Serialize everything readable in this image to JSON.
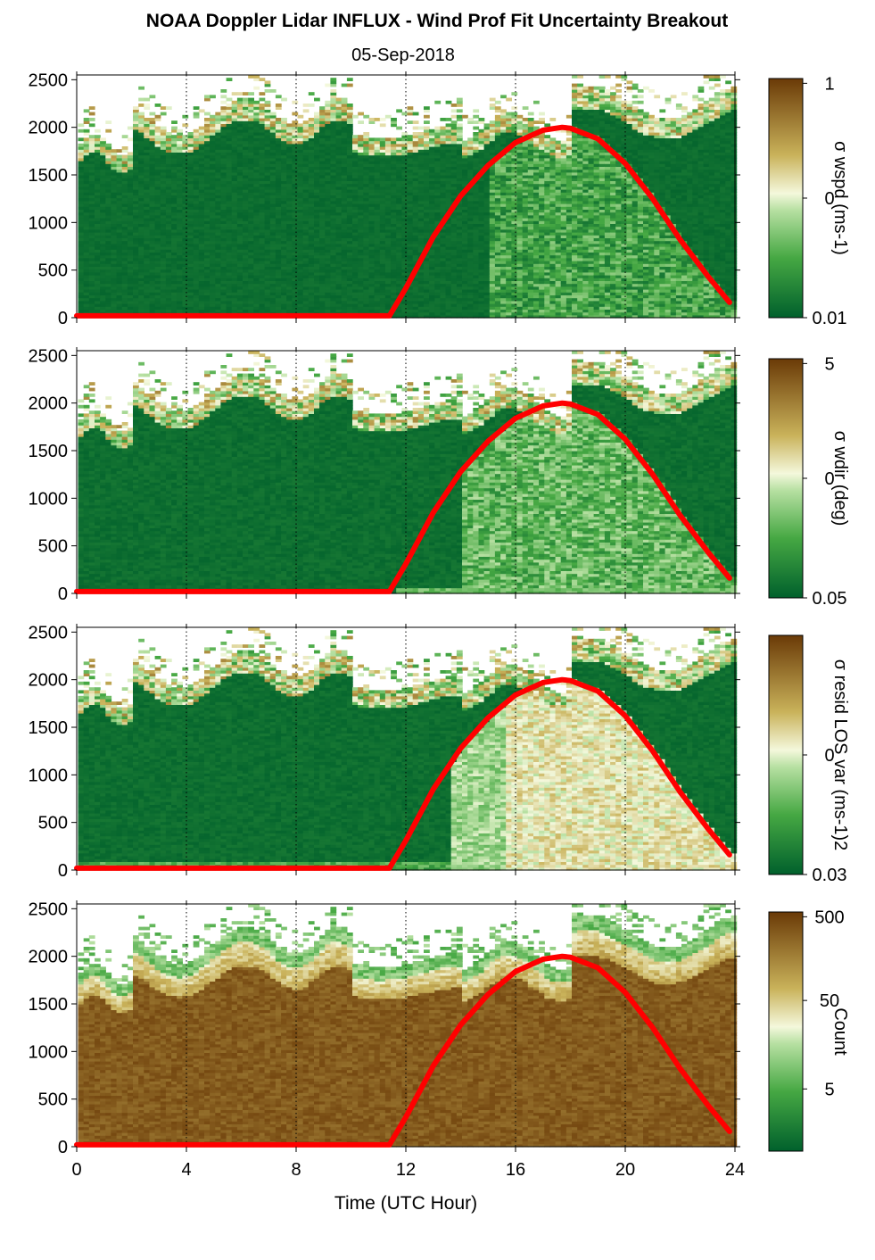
{
  "title": "NOAA Doppler Lidar INFLUX - Wind Prof Fit Uncertainty Breakout",
  "subtitle": "05-Sep-2018",
  "colors": {
    "dark_green": "#00662f",
    "mid_green": "#4fb74a",
    "pale": "#eef7dc",
    "tan": "#c9b25a",
    "dark_brown": "#6a3a07",
    "curve": "#ff0000"
  },
  "chart_data": [
    {
      "type": "heatmap",
      "panel": "wspd",
      "xlabel": "",
      "ylabel": "",
      "xlim": [
        0,
        24
      ],
      "ylim": [
        0,
        2550
      ],
      "x_ticks": [
        "0",
        "4",
        "8",
        "12",
        "16",
        "20",
        "24"
      ],
      "y_ticks": [
        "0",
        "500",
        "1000",
        "1500",
        "2000",
        "2500"
      ],
      "colorbar": {
        "label": "σ wspd (ms-1)",
        "ticks": [
          "1",
          "0",
          "0.01"
        ],
        "scale": "log"
      },
      "curve": {
        "x": [
          11.4,
          12,
          13,
          14,
          15,
          16,
          17,
          17.7,
          18,
          19,
          20,
          21,
          22,
          23,
          23.8
        ],
        "y": [
          20,
          310,
          850,
          1280,
          1600,
          1840,
          1970,
          2000,
          1990,
          1880,
          1620,
          1250,
          820,
          440,
          160
        ]
      }
    },
    {
      "type": "heatmap",
      "panel": "wdir",
      "xlabel": "",
      "ylabel": "",
      "xlim": [
        0,
        24
      ],
      "ylim": [
        0,
        2550
      ],
      "x_ticks": [
        "0",
        "4",
        "8",
        "12",
        "16",
        "20",
        "24"
      ],
      "y_ticks": [
        "0",
        "500",
        "1000",
        "1500",
        "2000",
        "2500"
      ],
      "colorbar": {
        "label": "σ wdir (deg)",
        "ticks": [
          "5",
          "0",
          "0.05"
        ],
        "scale": "log"
      },
      "curve": {
        "x": [
          11.4,
          12,
          13,
          14,
          15,
          16,
          17,
          17.7,
          18,
          19,
          20,
          21,
          22,
          23,
          23.8
        ],
        "y": [
          20,
          310,
          850,
          1280,
          1600,
          1840,
          1970,
          2000,
          1990,
          1880,
          1620,
          1250,
          820,
          440,
          160
        ]
      }
    },
    {
      "type": "heatmap",
      "panel": "resid",
      "xlabel": "",
      "ylabel": "",
      "xlim": [
        0,
        24
      ],
      "ylim": [
        0,
        2550
      ],
      "x_ticks": [
        "0",
        "4",
        "8",
        "12",
        "16",
        "20",
        "24"
      ],
      "y_ticks": [
        "0",
        "500",
        "1000",
        "1500",
        "2000",
        "2500"
      ],
      "colorbar": {
        "label": "σ resid LOS var (ms-1)2",
        "ticks": [
          "0",
          "0.03"
        ],
        "scale": "log"
      },
      "curve": {
        "x": [
          11.4,
          12,
          13,
          14,
          15,
          16,
          17,
          17.7,
          18,
          19,
          20,
          21,
          22,
          23,
          23.8
        ],
        "y": [
          20,
          310,
          850,
          1280,
          1600,
          1840,
          1970,
          2000,
          1990,
          1880,
          1620,
          1250,
          820,
          440,
          160
        ]
      }
    },
    {
      "type": "heatmap",
      "panel": "count",
      "xlabel": "Time (UTC Hour)",
      "ylabel": "",
      "xlim": [
        0,
        24
      ],
      "ylim": [
        0,
        2550
      ],
      "x_ticks": [
        "0",
        "4",
        "8",
        "12",
        "16",
        "20",
        "24"
      ],
      "y_ticks": [
        "0",
        "500",
        "1000",
        "1500",
        "2000",
        "2500"
      ],
      "colorbar": {
        "label": "Count",
        "ticks": [
          "500",
          "50",
          "5"
        ],
        "scale": "log"
      },
      "curve": {
        "x": [
          11.4,
          12,
          13,
          14,
          15,
          16,
          17,
          17.7,
          18,
          19,
          20,
          21,
          22,
          23,
          23.8
        ],
        "y": [
          20,
          310,
          850,
          1280,
          1600,
          1840,
          1970,
          2000,
          1990,
          1880,
          1620,
          1250,
          820,
          440,
          160
        ]
      }
    }
  ]
}
